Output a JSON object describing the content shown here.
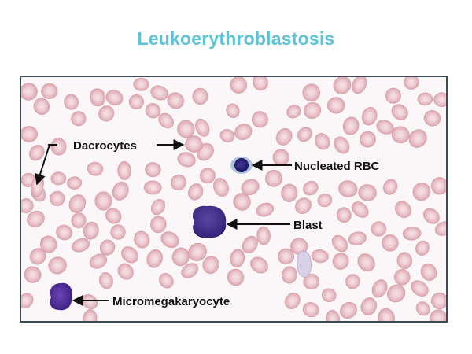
{
  "title": "Leukoerythroblastosis",
  "colors": {
    "title": "#5bc3d6",
    "frame_border": "#3b4b55",
    "background": "#fbf7f8",
    "rbc_fill": "#e7bcc3",
    "rbc_center": "#f5dfe3",
    "nucleus": "#2a2378",
    "nucleated_rbc_cytoplasm": "#a9bde0",
    "blast": "#4a3590",
    "micromegakaryocyte": "#5530a0",
    "arrow": "#111111"
  },
  "labels": {
    "dacrocytes": "Dacrocytes",
    "nucleated_rbc": "Nucleated RBC",
    "blast": "Blast",
    "micromegakaryocyte": "Micromegakaryocyte"
  },
  "icons": [
    "arrow-icon"
  ]
}
